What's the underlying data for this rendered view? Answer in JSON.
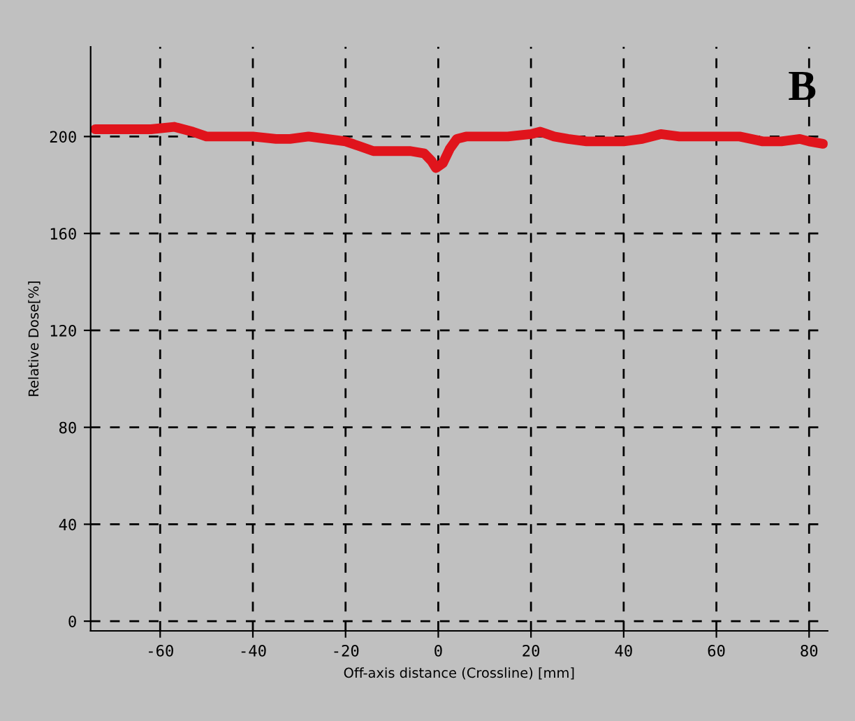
{
  "chart_data": {
    "type": "line",
    "xlabel": "Off-axis distance (Crossline) [mm]",
    "ylabel": "Relative Dose[%]",
    "annotations": [
      "B"
    ],
    "x": [
      -74,
      -68,
      -62,
      -57,
      -53,
      -50,
      -45,
      -40,
      -35,
      -32,
      -28,
      -24,
      -20,
      -17,
      -14,
      -10,
      -6,
      -3,
      -1.5,
      -0.5,
      1,
      2.5,
      4,
      6,
      10,
      15,
      20,
      22,
      25,
      28,
      32,
      36,
      40,
      44,
      48,
      52,
      56,
      60,
      65,
      70,
      74,
      78,
      80,
      83
    ],
    "series": [
      {
        "color": "#e0141c",
        "values": [
          203,
          203,
          203,
          204,
          202,
          200,
          200,
          200,
          199,
          199,
          200,
          199,
          198,
          196,
          194,
          194,
          194,
          193,
          190,
          187,
          189,
          195,
          199,
          200,
          200,
          200,
          201,
          202,
          200,
          199,
          198,
          198,
          198,
          199,
          201,
          200,
          200,
          200,
          200,
          198,
          198,
          199,
          198,
          197
        ]
      }
    ],
    "xlim": [
      -75,
      84
    ],
    "ylim": [
      -4,
      237
    ],
    "xticks": [
      -60,
      -40,
      -20,
      0,
      20,
      40,
      60,
      80
    ],
    "yticks": [
      0,
      40,
      80,
      120,
      160,
      200
    ],
    "grid": true,
    "line_style": "solid",
    "marker": "none"
  }
}
